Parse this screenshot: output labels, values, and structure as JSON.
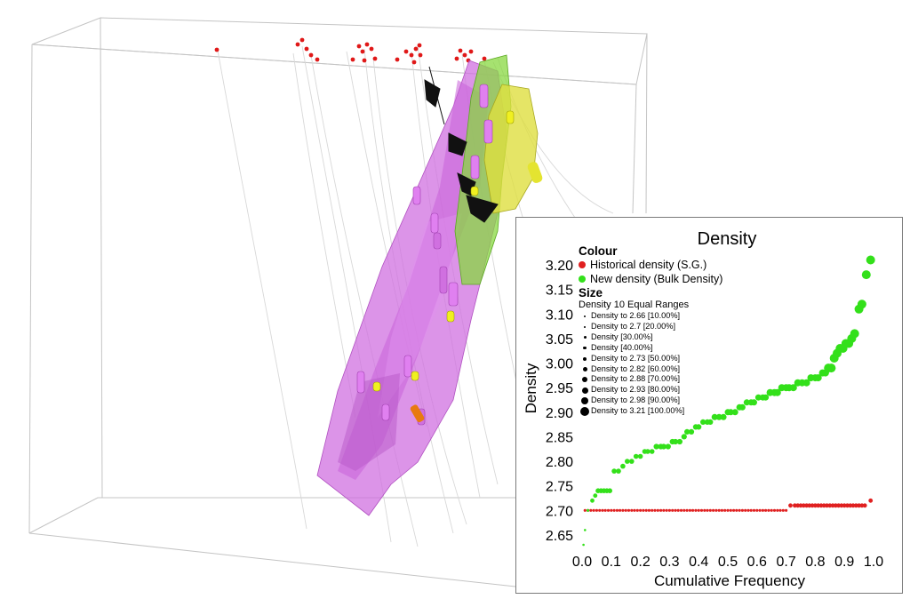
{
  "chart_data": {
    "type": "scatter",
    "title": "Density",
    "xlabel": "Cumulative Frequency",
    "ylabel": "Density",
    "xlim": [
      0,
      1.0
    ],
    "ylim": [
      2.63,
      3.22
    ],
    "x_ticks": [
      "0.0",
      "0.1",
      "0.2",
      "0.3",
      "0.4",
      "0.5",
      "0.6",
      "0.7",
      "0.8",
      "0.9",
      "1.0"
    ],
    "y_ticks": [
      "2.65",
      "2.70",
      "2.75",
      "2.80",
      "2.85",
      "2.90",
      "2.95",
      "3.00",
      "3.05",
      "3.10",
      "3.15",
      "3.20"
    ],
    "grid": false,
    "legend_position": "top-left",
    "series": [
      {
        "name": "Historical density (S.G.)",
        "color": "#e02020",
        "points": [
          [
            0.01,
            2.7
          ],
          [
            0.02,
            2.7
          ],
          [
            0.03,
            2.7
          ],
          [
            0.04,
            2.7
          ],
          [
            0.05,
            2.7
          ],
          [
            0.06,
            2.7
          ],
          [
            0.07,
            2.7
          ],
          [
            0.08,
            2.7
          ],
          [
            0.09,
            2.7
          ],
          [
            0.1,
            2.7
          ],
          [
            0.11,
            2.7
          ],
          [
            0.12,
            2.7
          ],
          [
            0.13,
            2.7
          ],
          [
            0.14,
            2.7
          ],
          [
            0.15,
            2.7
          ],
          [
            0.16,
            2.7
          ],
          [
            0.17,
            2.7
          ],
          [
            0.18,
            2.7
          ],
          [
            0.19,
            2.7
          ],
          [
            0.2,
            2.7
          ],
          [
            0.21,
            2.7
          ],
          [
            0.22,
            2.7
          ],
          [
            0.23,
            2.7
          ],
          [
            0.24,
            2.7
          ],
          [
            0.25,
            2.7
          ],
          [
            0.26,
            2.7
          ],
          [
            0.27,
            2.7
          ],
          [
            0.28,
            2.7
          ],
          [
            0.29,
            2.7
          ],
          [
            0.3,
            2.7
          ],
          [
            0.31,
            2.7
          ],
          [
            0.32,
            2.7
          ],
          [
            0.33,
            2.7
          ],
          [
            0.34,
            2.7
          ],
          [
            0.35,
            2.7
          ],
          [
            0.36,
            2.7
          ],
          [
            0.37,
            2.7
          ],
          [
            0.38,
            2.7
          ],
          [
            0.39,
            2.7
          ],
          [
            0.4,
            2.7
          ],
          [
            0.41,
            2.7
          ],
          [
            0.42,
            2.7
          ],
          [
            0.43,
            2.7
          ],
          [
            0.44,
            2.7
          ],
          [
            0.45,
            2.7
          ],
          [
            0.46,
            2.7
          ],
          [
            0.47,
            2.7
          ],
          [
            0.48,
            2.7
          ],
          [
            0.49,
            2.7
          ],
          [
            0.5,
            2.7
          ],
          [
            0.51,
            2.7
          ],
          [
            0.52,
            2.7
          ],
          [
            0.53,
            2.7
          ],
          [
            0.54,
            2.7
          ],
          [
            0.55,
            2.7
          ],
          [
            0.56,
            2.7
          ],
          [
            0.57,
            2.7
          ],
          [
            0.58,
            2.7
          ],
          [
            0.59,
            2.7
          ],
          [
            0.6,
            2.7
          ],
          [
            0.61,
            2.7
          ],
          [
            0.62,
            2.7
          ],
          [
            0.63,
            2.7
          ],
          [
            0.64,
            2.7
          ],
          [
            0.65,
            2.7
          ],
          [
            0.66,
            2.7
          ],
          [
            0.67,
            2.7
          ],
          [
            0.68,
            2.7
          ],
          [
            0.69,
            2.7
          ],
          [
            0.7,
            2.7
          ],
          [
            0.715,
            2.71
          ],
          [
            0.73,
            2.71
          ],
          [
            0.74,
            2.71
          ],
          [
            0.75,
            2.71
          ],
          [
            0.76,
            2.71
          ],
          [
            0.77,
            2.71
          ],
          [
            0.78,
            2.71
          ],
          [
            0.79,
            2.71
          ],
          [
            0.8,
            2.71
          ],
          [
            0.81,
            2.71
          ],
          [
            0.82,
            2.71
          ],
          [
            0.83,
            2.71
          ],
          [
            0.84,
            2.71
          ],
          [
            0.85,
            2.71
          ],
          [
            0.86,
            2.71
          ],
          [
            0.87,
            2.71
          ],
          [
            0.88,
            2.71
          ],
          [
            0.89,
            2.71
          ],
          [
            0.9,
            2.71
          ],
          [
            0.91,
            2.71
          ],
          [
            0.92,
            2.71
          ],
          [
            0.93,
            2.71
          ],
          [
            0.94,
            2.71
          ],
          [
            0.95,
            2.71
          ],
          [
            0.96,
            2.71
          ],
          [
            0.97,
            2.71
          ],
          [
            0.99,
            2.72
          ]
        ]
      },
      {
        "name": "New density (Bulk Density)",
        "color": "#33e01a",
        "points": [
          [
            0.005,
            2.63
          ],
          [
            0.01,
            2.66
          ],
          [
            0.02,
            2.7
          ],
          [
            0.035,
            2.72
          ],
          [
            0.045,
            2.73
          ],
          [
            0.055,
            2.74
          ],
          [
            0.065,
            2.74
          ],
          [
            0.075,
            2.74
          ],
          [
            0.085,
            2.74
          ],
          [
            0.095,
            2.74
          ],
          [
            0.11,
            2.78
          ],
          [
            0.125,
            2.78
          ],
          [
            0.14,
            2.79
          ],
          [
            0.155,
            2.8
          ],
          [
            0.17,
            2.8
          ],
          [
            0.185,
            2.81
          ],
          [
            0.2,
            2.81
          ],
          [
            0.215,
            2.82
          ],
          [
            0.225,
            2.82
          ],
          [
            0.24,
            2.82
          ],
          [
            0.255,
            2.83
          ],
          [
            0.27,
            2.83
          ],
          [
            0.28,
            2.83
          ],
          [
            0.295,
            2.83
          ],
          [
            0.31,
            2.84
          ],
          [
            0.32,
            2.84
          ],
          [
            0.335,
            2.84
          ],
          [
            0.35,
            2.85
          ],
          [
            0.36,
            2.86
          ],
          [
            0.375,
            2.86
          ],
          [
            0.39,
            2.87
          ],
          [
            0.4,
            2.87
          ],
          [
            0.415,
            2.88
          ],
          [
            0.43,
            2.88
          ],
          [
            0.44,
            2.88
          ],
          [
            0.455,
            2.89
          ],
          [
            0.47,
            2.89
          ],
          [
            0.485,
            2.89
          ],
          [
            0.5,
            2.9
          ],
          [
            0.51,
            2.9
          ],
          [
            0.525,
            2.9
          ],
          [
            0.54,
            2.91
          ],
          [
            0.55,
            2.91
          ],
          [
            0.565,
            2.92
          ],
          [
            0.58,
            2.92
          ],
          [
            0.59,
            2.92
          ],
          [
            0.605,
            2.93
          ],
          [
            0.62,
            2.93
          ],
          [
            0.63,
            2.93
          ],
          [
            0.645,
            2.94
          ],
          [
            0.66,
            2.94
          ],
          [
            0.67,
            2.94
          ],
          [
            0.685,
            2.95
          ],
          [
            0.7,
            2.95
          ],
          [
            0.71,
            2.95
          ],
          [
            0.725,
            2.95
          ],
          [
            0.74,
            2.96
          ],
          [
            0.755,
            2.96
          ],
          [
            0.77,
            2.96
          ],
          [
            0.785,
            2.97
          ],
          [
            0.8,
            2.97
          ],
          [
            0.81,
            2.97
          ],
          [
            0.825,
            2.98
          ],
          [
            0.835,
            2.98
          ],
          [
            0.845,
            2.99
          ],
          [
            0.855,
            2.99
          ],
          [
            0.865,
            3.01
          ],
          [
            0.875,
            3.02
          ],
          [
            0.885,
            3.03
          ],
          [
            0.895,
            3.03
          ],
          [
            0.905,
            3.04
          ],
          [
            0.915,
            3.04
          ],
          [
            0.925,
            3.05
          ],
          [
            0.935,
            3.06
          ],
          [
            0.95,
            3.11
          ],
          [
            0.96,
            3.12
          ],
          [
            0.975,
            3.18
          ],
          [
            0.99,
            3.21
          ]
        ]
      }
    ]
  },
  "legend": {
    "colour_heading": "Colour",
    "colour_items": [
      {
        "label": "Historical density (S.G.)",
        "color": "#e02020"
      },
      {
        "label": "New density (Bulk Density)",
        "color": "#33e01a"
      }
    ],
    "size_heading": "Size",
    "size_subheading": "Density 10 Equal Ranges",
    "size_items": [
      {
        "label": "Density  to 2.66  [10.00%]",
        "level": 1
      },
      {
        "label": "Density  to 2.7  [20.00%]",
        "level": 2
      },
      {
        "label": "Density   [30.00%]",
        "level": 3
      },
      {
        "label": "Density   [40.00%]",
        "level": 4
      },
      {
        "label": "Density  to 2.73  [50.00%]",
        "level": 5
      },
      {
        "label": "Density  to 2.82  [60.00%]",
        "level": 6
      },
      {
        "label": "Density  to 2.88  [70.00%]",
        "level": 7
      },
      {
        "label": "Density  to 2.93  [80.00%]",
        "level": 8
      },
      {
        "label": "Density  to 2.98  [90.00%]",
        "level": 9
      },
      {
        "label": "Density  to 3.21  [100.00%]",
        "level": 10
      }
    ]
  },
  "scene": {
    "surface_colors": {
      "magenta": "#d070e0",
      "green": "#88d840",
      "yellow": "#dede40",
      "orange": "#e87a10",
      "collar": "#e01818"
    }
  }
}
